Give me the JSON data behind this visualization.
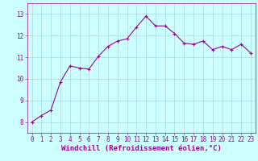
{
  "x": [
    0,
    1,
    2,
    3,
    4,
    5,
    6,
    7,
    8,
    9,
    10,
    11,
    12,
    13,
    14,
    15,
    16,
    17,
    18,
    19,
    20,
    21,
    22,
    23
  ],
  "y": [
    8.0,
    8.3,
    8.55,
    9.85,
    10.6,
    10.5,
    10.45,
    11.05,
    11.5,
    11.75,
    11.85,
    12.4,
    12.9,
    12.45,
    12.45,
    12.1,
    11.65,
    11.6,
    11.75,
    11.35,
    11.5,
    11.35,
    11.6,
    11.2
  ],
  "line_color": "#990099",
  "marker": "+",
  "marker_size": 3.5,
  "bg_color": "#ccffff",
  "grid_color": "#aacccc",
  "xlabel": "Windchill (Refroidissement éolien,°C)",
  "xlabel_color": "#990099",
  "xlabel_fontsize": 6.5,
  "ylim": [
    7.5,
    13.5
  ],
  "xlim": [
    -0.5,
    23.5
  ],
  "yticks": [
    8,
    9,
    10,
    11,
    12,
    13
  ],
  "xticks": [
    0,
    1,
    2,
    3,
    4,
    5,
    6,
    7,
    8,
    9,
    10,
    11,
    12,
    13,
    14,
    15,
    16,
    17,
    18,
    19,
    20,
    21,
    22,
    23
  ],
  "tick_color": "#990099",
  "tick_fontsize": 5.5,
  "line_width": 0.8,
  "line_style": "-"
}
